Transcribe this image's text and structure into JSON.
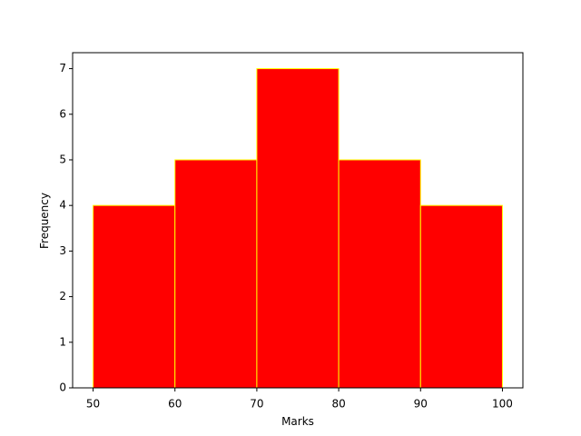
{
  "chart_data": {
    "type": "histogram",
    "x_label": "Marks",
    "y_label": "Frequency",
    "bins": [
      50,
      60,
      70,
      80,
      90,
      100
    ],
    "values": [
      4,
      5,
      7,
      5,
      4
    ],
    "color": "#ff0000",
    "edgecolor": "#ffff00",
    "xlim": [
      47.5,
      102.5
    ],
    "xticks": [
      50,
      60,
      70,
      80,
      90,
      100
    ],
    "ylim": [
      0,
      7.35
    ],
    "yticks": [
      0,
      1,
      2,
      3,
      4,
      5,
      6,
      7
    ],
    "grid": false
  }
}
